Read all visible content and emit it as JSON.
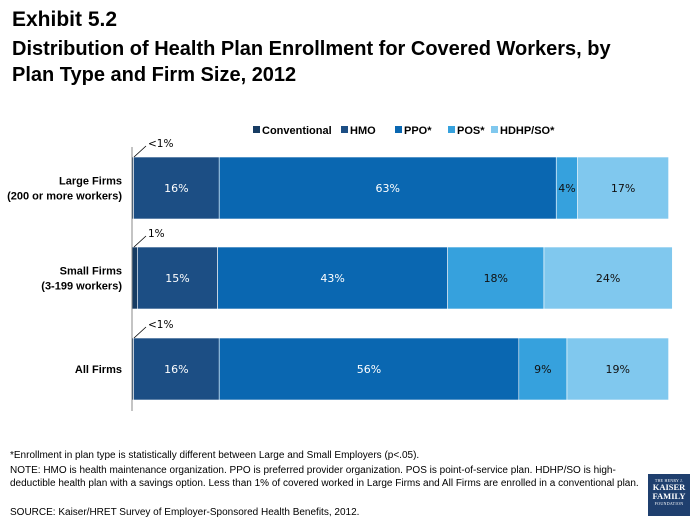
{
  "header": {
    "exhibit": "Exhibit 5.2",
    "title_line1": "Distribution of Health Plan Enrollment for Covered Workers, by",
    "title_line2": "Plan Type and Firm Size, 2012"
  },
  "chart_data": {
    "type": "bar",
    "orientation": "horizontal",
    "stacked": true,
    "percent_stacked": true,
    "xlim": [
      0,
      100
    ],
    "grid": false,
    "legend_position": "top-right",
    "categories": [
      [
        "Large Firms",
        "(200 or more workers)"
      ],
      [
        "Small Firms",
        "(3-199 workers)"
      ],
      [
        "All Firms"
      ]
    ],
    "series": [
      {
        "name": "Conventional",
        "color": "#173c63",
        "values": [
          0.3,
          1,
          0.3
        ],
        "labels": [
          "<1%",
          "1%",
          "<1%"
        ]
      },
      {
        "name": "HMO",
        "color": "#1c4e84",
        "values": [
          16,
          15,
          16
        ],
        "labels": [
          "16%",
          "15%",
          "16%"
        ]
      },
      {
        "name": "PPO*",
        "color": "#0a67b1",
        "values": [
          63,
          43,
          56
        ],
        "labels": [
          "63%",
          "43%",
          "56%"
        ]
      },
      {
        "name": "POS*",
        "color": "#36a1dd",
        "values": [
          4,
          18,
          9
        ],
        "labels": [
          "4%",
          "18%",
          "9%"
        ]
      },
      {
        "name": "HDHP/SO*",
        "color": "#80c8ee",
        "values": [
          17,
          24,
          19
        ],
        "labels": [
          "17%",
          "24%",
          "19%"
        ]
      }
    ]
  },
  "footnotes": {
    "star": "*Enrollment in plan type is statistically different between Large and Small Employers (p<.05).",
    "note": "NOTE: HMO is health maintenance organization. PPO is preferred provider organization. POS is point-of-service plan. HDHP/SO is high-deductible health plan with a savings option.  Less than 1% of covered worked in Large Firms and All Firms are enrolled in a conventional plan.",
    "source": "SOURCE:  Kaiser/HRET Survey of Employer-Sponsored Health Benefits, 2012."
  },
  "logo": {
    "line1": "THE HENRY J.",
    "line2": "KAISER",
    "line3": "FAMILY",
    "line4": "FOUNDATION"
  }
}
